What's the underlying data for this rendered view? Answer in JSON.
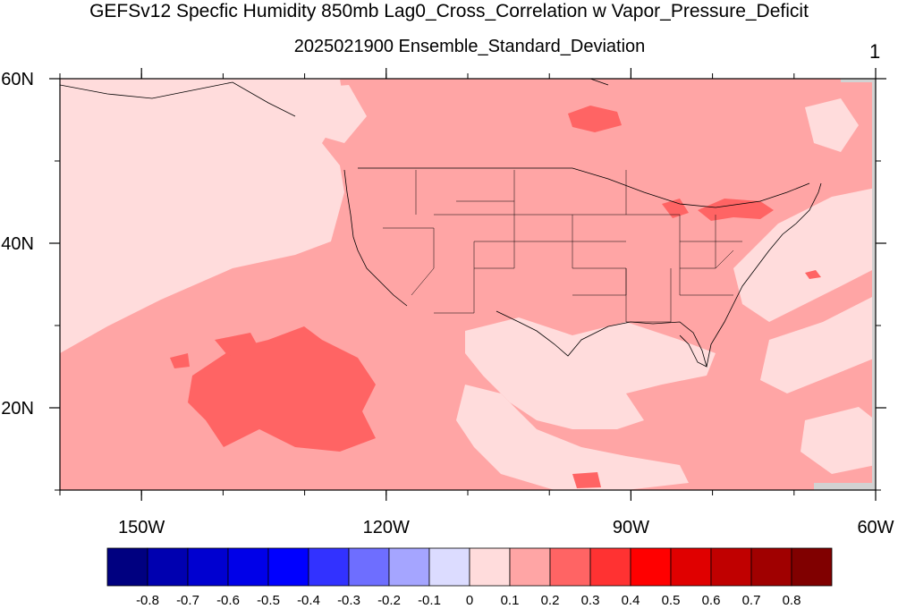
{
  "title": "GEFSv12 Specfic Humidity 850mb Lag0_Cross_Correlation w Vapor_Pressure_Deficit",
  "subtitle": "2025021900 Ensemble_Standard_Deviation",
  "panel_label": "1",
  "map": {
    "projection": "cylindrical-equidistant",
    "lon_range": [
      -160,
      -60
    ],
    "lat_range": [
      10,
      60
    ],
    "x_ticks": [
      {
        "lon": -150,
        "label": "150W"
      },
      {
        "lon": -120,
        "label": "120W"
      },
      {
        "lon": -90,
        "label": "90W"
      },
      {
        "lon": -60,
        "label": "60W"
      }
    ],
    "y_ticks": [
      {
        "lat": 60,
        "label": "60N"
      },
      {
        "lat": 40,
        "label": "40N"
      },
      {
        "lat": 20,
        "label": "20N"
      }
    ],
    "dominant_level": "0.1 to 0.2",
    "colors": {
      "bin_0_01": "#ffdcdc",
      "bin_01_02": "#ffa5a5",
      "bin_02_03": "#ff6464",
      "missing": "#d2d2d2",
      "coast": "#000000"
    }
  },
  "colorbar": {
    "bins": [
      {
        "color": "#000080"
      },
      {
        "color": "#0000b0"
      },
      {
        "color": "#0000d0"
      },
      {
        "color": "#0000e8"
      },
      {
        "color": "#0000ff"
      },
      {
        "color": "#3232ff"
      },
      {
        "color": "#6e6eff"
      },
      {
        "color": "#a5a5ff"
      },
      {
        "color": "#dcdcff"
      },
      {
        "color": "#ffdcdc"
      },
      {
        "color": "#ffa5a5"
      },
      {
        "color": "#ff6464"
      },
      {
        "color": "#ff3232"
      },
      {
        "color": "#ff0000"
      },
      {
        "color": "#e00000"
      },
      {
        "color": "#c00000"
      },
      {
        "color": "#a00000"
      },
      {
        "color": "#800000"
      }
    ],
    "labels": [
      "-0.8",
      "-0.7",
      "-0.6",
      "-0.5",
      "-0.4",
      "-0.3",
      "-0.2",
      "-0.1",
      "0",
      "0.1",
      "0.2",
      "0.3",
      "0.4",
      "0.5",
      "0.6",
      "0.7",
      "0.8"
    ]
  }
}
